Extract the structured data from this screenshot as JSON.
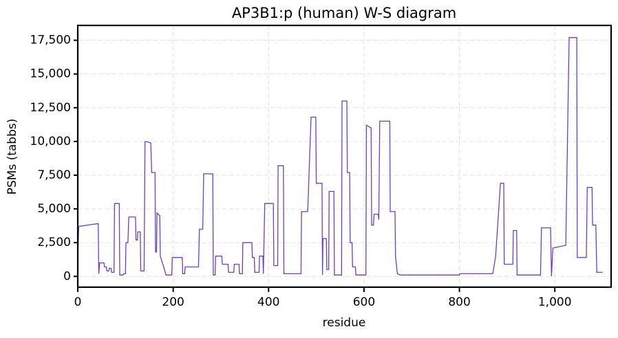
{
  "chart_data": {
    "type": "line",
    "title": "AP3B1:p (human) W-S diagram",
    "x_label": "residue",
    "y_label": "PSMs (tabbs)",
    "xlim": [
      0,
      1118
    ],
    "ylim": [
      -800,
      18600
    ],
    "grid": true,
    "xticks": [
      0,
      200,
      400,
      600,
      800,
      {
        "value": 1000,
        "label": "1,000"
      }
    ],
    "yticks": [
      0,
      {
        "value": 2500,
        "label": "2,500"
      },
      {
        "value": 5000,
        "label": "5,000"
      },
      {
        "value": 7500,
        "label": "7,500"
      },
      {
        "value": 10000,
        "label": "10,000"
      },
      {
        "value": 12500,
        "label": "12,500"
      },
      {
        "value": 15000,
        "label": "15,000"
      },
      {
        "value": 17500,
        "label": "17,500"
      }
    ],
    "x": [
      0,
      2,
      40,
      43,
      44,
      46,
      55,
      56,
      60,
      61,
      65,
      66,
      70,
      71,
      76,
      77,
      87,
      88,
      95,
      96,
      100,
      101,
      105,
      107,
      121,
      122,
      125,
      126,
      131,
      132,
      139,
      141,
      153,
      155,
      162,
      163,
      165,
      166,
      172,
      173,
      180,
      185,
      197,
      198,
      219,
      220,
      224,
      225,
      253,
      255,
      262,
      264,
      283,
      284,
      288,
      289,
      302,
      303,
      315,
      316,
      327,
      328,
      338,
      339,
      345,
      346,
      365,
      366,
      370,
      371,
      380,
      381,
      388,
      389,
      392,
      410,
      411,
      419,
      420,
      431,
      432,
      468,
      469,
      482,
      489,
      499,
      500,
      512,
      513,
      514,
      521,
      522,
      526,
      527,
      537,
      538,
      553,
      554,
      564,
      565,
      570,
      571,
      575,
      576,
      582,
      583,
      604,
      605,
      615,
      616,
      620,
      621,
      630,
      631,
      633,
      654,
      655,
      665,
      666,
      670,
      676,
      800,
      801,
      870,
      876,
      886,
      893,
      894,
      912,
      913,
      920,
      921,
      970,
      972,
      991,
      993,
      996,
      1023,
      1030,
      1046,
      1047,
      1066,
      1068,
      1078,
      1079,
      1086,
      1088,
      1100
    ],
    "series": [
      {
        "name": "PSMs",
        "color": "#6a3fc8",
        "values": [
          1500,
          3700,
          3900,
          3900,
          200,
          1000,
          1000,
          700,
          700,
          400,
          400,
          600,
          600,
          300,
          300,
          5400,
          5400,
          100,
          100,
          200,
          200,
          2500,
          2500,
          4400,
          4400,
          2700,
          2700,
          3300,
          3300,
          400,
          400,
          10000,
          9900,
          7700,
          7700,
          1800,
          1800,
          4700,
          4500,
          1500,
          700,
          100,
          100,
          1400,
          1400,
          200,
          200,
          700,
          700,
          3500,
          3500,
          7600,
          7600,
          100,
          100,
          1500,
          1500,
          900,
          900,
          300,
          300,
          900,
          900,
          200,
          200,
          2500,
          2500,
          1400,
          1400,
          300,
          300,
          1500,
          1500,
          200,
          5400,
          5400,
          800,
          800,
          8200,
          8200,
          200,
          200,
          4800,
          4800,
          11800,
          11800,
          6900,
          6900,
          100,
          2800,
          2800,
          500,
          500,
          6300,
          6300,
          100,
          100,
          13000,
          13000,
          7700,
          7700,
          2500,
          2500,
          700,
          700,
          100,
          100,
          11200,
          11000,
          3800,
          3800,
          4600,
          4600,
          4200,
          11500,
          11500,
          4800,
          4800,
          1500,
          200,
          100,
          100,
          200,
          200,
          1500,
          6900,
          6900,
          900,
          900,
          3400,
          3400,
          100,
          100,
          3600,
          3600,
          0,
          2100,
          2300,
          17700,
          17700,
          1400,
          1400,
          6600,
          6600,
          3800,
          3800,
          300,
          300
        ]
      }
    ]
  }
}
